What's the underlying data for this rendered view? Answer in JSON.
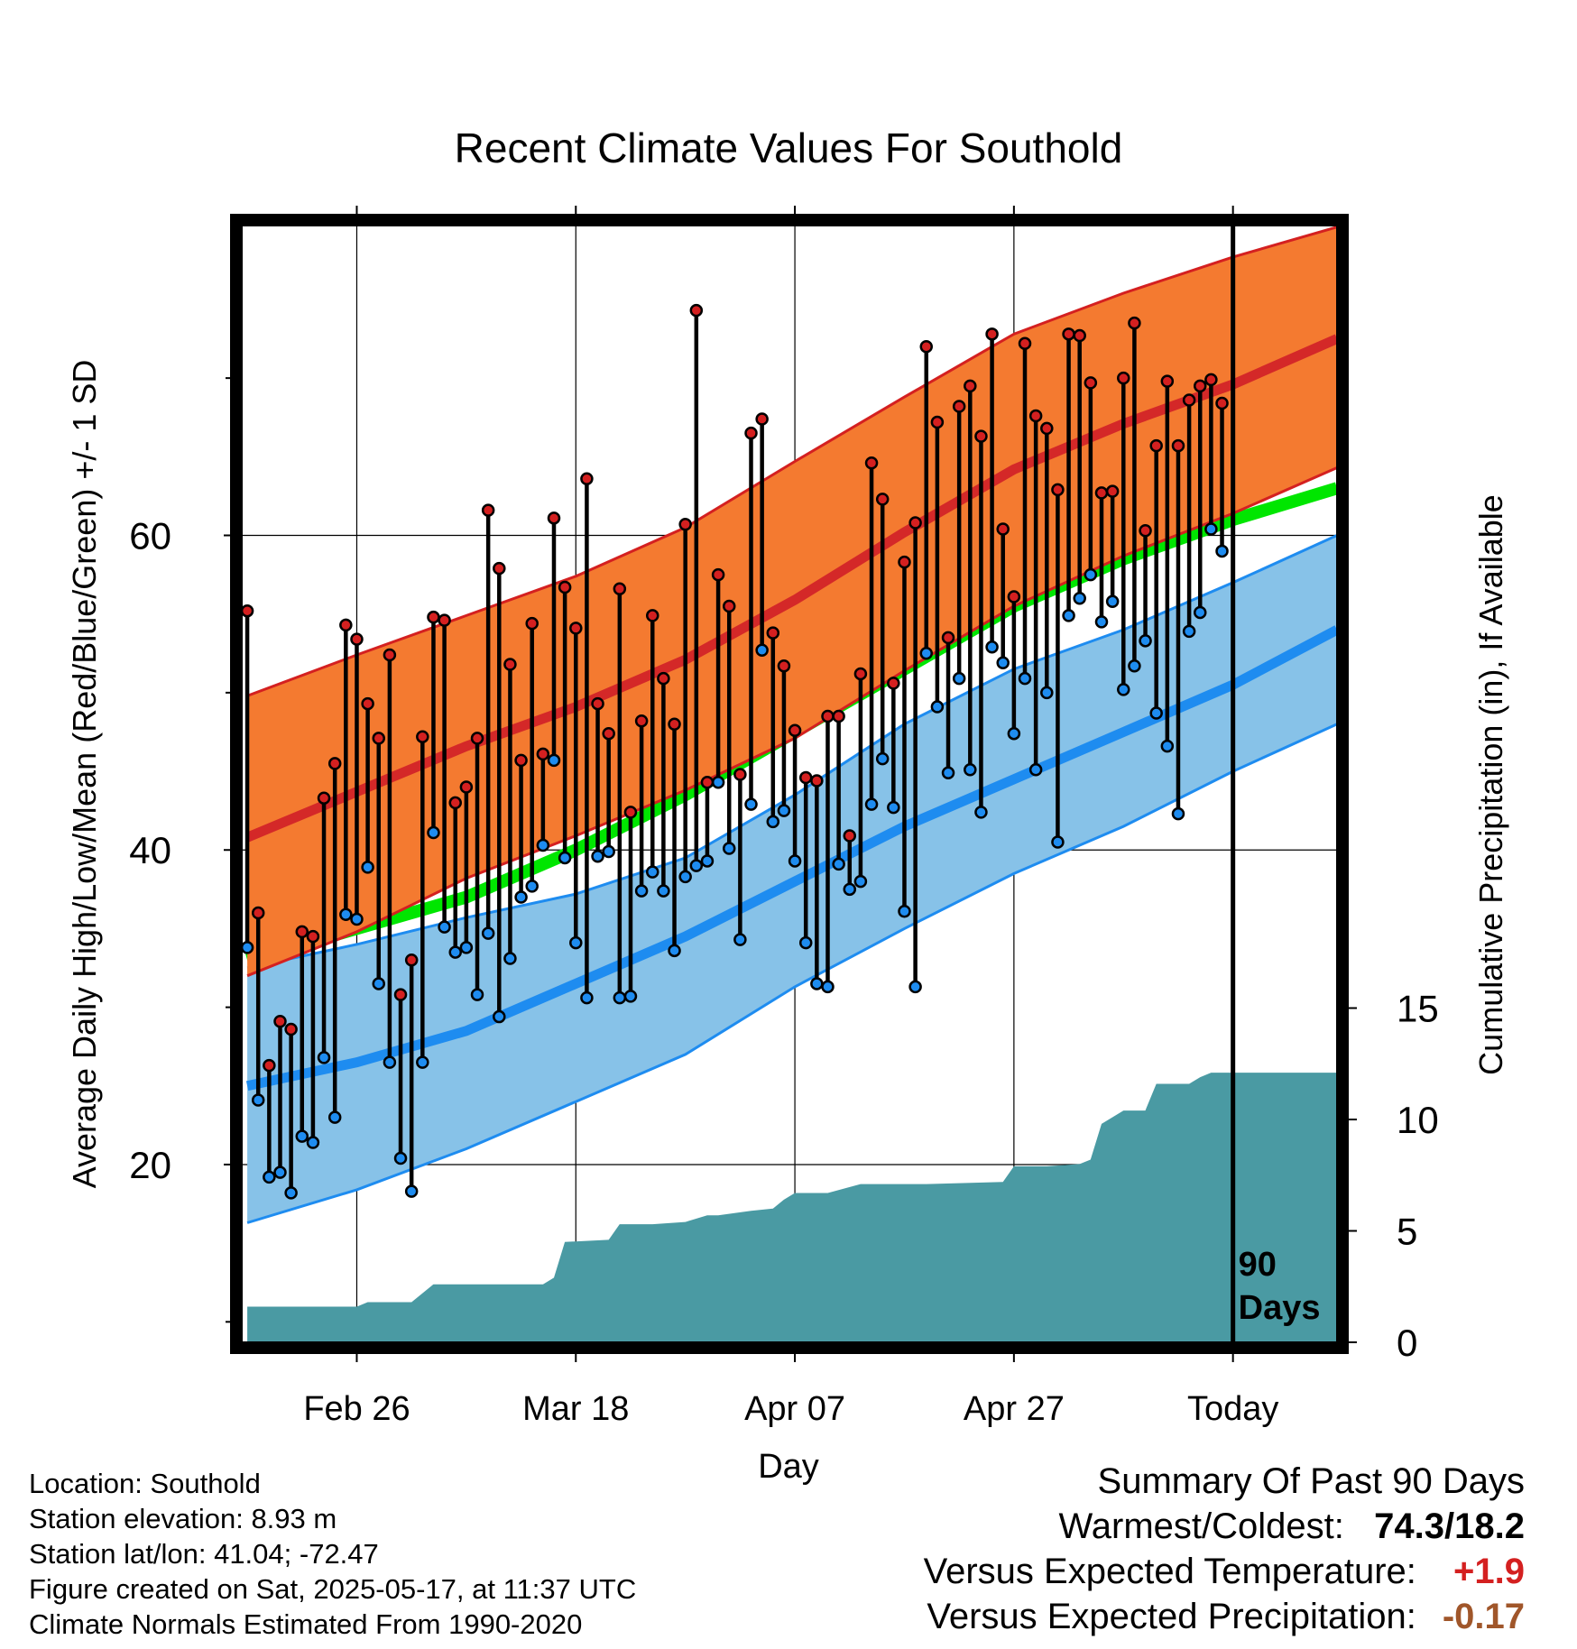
{
  "chart_data": {
    "type": "line",
    "title": "Recent Climate Values For Southold",
    "xlabel": "Day",
    "ylabel": "Average Daily High/Low/Mean (Red/Blue/Green) +/- 1 SD",
    "y2label": "Cumulative Precipitation (in), If Available",
    "x_tick_labels": [
      {
        "label": "Feb 26",
        "day": 10
      },
      {
        "label": "Mar 18",
        "day": 30
      },
      {
        "label": "Apr 07",
        "day": 50
      },
      {
        "label": "Apr 27",
        "day": 70
      },
      {
        "label": "Today",
        "day": 90
      }
    ],
    "y_ticks": [
      20,
      40,
      60
    ],
    "y_minor_ticks": [
      10,
      30,
      50,
      70
    ],
    "ylim": [
      8.7,
      79.7
    ],
    "y2_ticks": [
      0,
      5,
      10,
      15
    ],
    "y2lim": [
      0,
      15
    ],
    "xlim": [
      -0.5,
      99.5
    ],
    "today_day": 90,
    "period_label_line1": "90",
    "period_label_line2": "Days",
    "grid": true,
    "normal_high": {
      "day": [
        0,
        10,
        20,
        30,
        40,
        50,
        60,
        70,
        80,
        90,
        99.5
      ],
      "mean": [
        40.8,
        43.7,
        46.6,
        49.1,
        52.1,
        55.9,
        60.2,
        64.2,
        67.1,
        69.6,
        72.5
      ],
      "sd_upper": [
        49.8,
        52.4,
        54.9,
        57.4,
        60.5,
        64.7,
        68.8,
        72.8,
        75.4,
        77.7,
        79.6
      ],
      "sd_lower": [
        32.0,
        34.8,
        38.2,
        40.9,
        43.8,
        47.1,
        51.4,
        55.5,
        58.7,
        61.4,
        64.3
      ]
    },
    "normal_mean": {
      "day": [
        0,
        10,
        20,
        30,
        40,
        50,
        60,
        70,
        80,
        90,
        99.5
      ],
      "values": [
        33.0,
        35.0,
        37.0,
        40.0,
        43.5,
        47.5,
        51.5,
        55.5,
        58.5,
        61.0,
        63.0
      ]
    },
    "normal_low": {
      "day": [
        0,
        10,
        20,
        30,
        40,
        50,
        60,
        70,
        80,
        90,
        99.5
      ],
      "mean": [
        25.0,
        26.5,
        28.5,
        31.5,
        34.5,
        38.0,
        41.5,
        44.5,
        47.5,
        50.5,
        54.0
      ],
      "sd_upper": [
        32.5,
        34.0,
        35.7,
        37.2,
        39.5,
        43.5,
        48.0,
        51.5,
        54.0,
        57.0,
        60.0
      ],
      "sd_lower": [
        16.3,
        18.4,
        21.0,
        24.0,
        27.0,
        31.3,
        35.0,
        38.5,
        41.5,
        45.0,
        48.0
      ]
    },
    "series": [
      {
        "name": "High",
        "day": [
          0,
          1,
          2,
          3,
          4,
          5,
          6,
          7,
          8,
          9,
          10,
          11,
          12,
          13,
          14,
          15,
          16,
          17,
          18,
          19,
          20,
          21,
          22,
          23,
          24,
          25,
          26,
          27,
          28,
          29,
          30,
          31,
          32,
          33,
          34,
          35,
          36,
          37,
          38,
          39,
          40,
          41,
          42,
          43,
          44,
          45,
          46,
          47,
          48,
          49,
          50,
          51,
          52,
          53,
          54,
          55,
          56,
          57,
          58,
          59,
          60,
          61,
          62,
          63,
          64,
          65,
          66,
          67,
          68,
          69,
          70,
          71,
          72,
          73,
          74,
          75,
          76,
          77,
          78,
          79,
          80,
          81,
          82,
          83,
          84,
          85,
          86,
          87,
          88,
          89
        ],
        "values": [
          55.2,
          36.0,
          26.3,
          29.1,
          28.6,
          34.8,
          34.5,
          43.3,
          45.5,
          54.3,
          53.4,
          49.3,
          47.1,
          52.4,
          30.8,
          33.0,
          47.2,
          54.8,
          54.6,
          43.0,
          44.0,
          47.1,
          61.6,
          57.9,
          51.8,
          45.7,
          54.4,
          46.1,
          61.1,
          56.7,
          54.1,
          63.6,
          49.3,
          47.4,
          56.6,
          42.4,
          48.2,
          54.9,
          50.9,
          48.0,
          60.7,
          74.3,
          44.3,
          57.5,
          55.5,
          44.8,
          66.5,
          67.4,
          53.8,
          51.7,
          47.6,
          44.6,
          44.4,
          48.5,
          48.5,
          40.9,
          51.2,
          64.6,
          62.3,
          50.6,
          58.3,
          60.8,
          72.0,
          67.2,
          53.5,
          68.2,
          69.5,
          66.3,
          72.8,
          60.4,
          56.1,
          72.2,
          67.6,
          66.8,
          62.9,
          72.8,
          72.7,
          69.7,
          62.7,
          62.8,
          70.0,
          73.5,
          60.3,
          65.7,
          69.8,
          65.7,
          68.6,
          69.5,
          69.9,
          68.4
        ]
      },
      {
        "name": "Low",
        "day": [
          0,
          1,
          2,
          3,
          4,
          5,
          6,
          7,
          8,
          9,
          10,
          11,
          12,
          13,
          14,
          15,
          16,
          17,
          18,
          19,
          20,
          21,
          22,
          23,
          24,
          25,
          26,
          27,
          28,
          29,
          30,
          31,
          32,
          33,
          34,
          35,
          36,
          37,
          38,
          39,
          40,
          41,
          42,
          43,
          44,
          45,
          46,
          47,
          48,
          49,
          50,
          51,
          52,
          53,
          54,
          55,
          56,
          57,
          58,
          59,
          60,
          61,
          62,
          63,
          64,
          65,
          66,
          67,
          68,
          69,
          70,
          71,
          72,
          73,
          74,
          75,
          76,
          77,
          78,
          79,
          80,
          81,
          82,
          83,
          84,
          85,
          86,
          87,
          88,
          89
        ],
        "values": [
          33.8,
          24.1,
          19.2,
          19.5,
          18.2,
          21.8,
          21.4,
          26.8,
          23.0,
          35.9,
          35.6,
          38.9,
          31.5,
          26.5,
          20.4,
          18.3,
          26.5,
          41.1,
          35.1,
          33.5,
          33.8,
          30.8,
          34.7,
          29.4,
          33.1,
          37.0,
          37.7,
          40.3,
          45.7,
          39.5,
          34.1,
          30.6,
          39.6,
          39.9,
          30.6,
          30.7,
          37.4,
          38.6,
          37.4,
          33.6,
          38.3,
          39.0,
          39.3,
          44.3,
          40.1,
          34.3,
          42.9,
          52.7,
          41.8,
          42.5,
          39.3,
          34.1,
          31.5,
          31.3,
          39.1,
          37.5,
          38.0,
          42.9,
          45.8,
          42.7,
          36.1,
          31.3,
          52.5,
          49.1,
          44.9,
          50.9,
          45.1,
          42.4,
          52.9,
          51.9,
          47.4,
          50.9,
          45.1,
          50.0,
          40.5,
          54.9,
          56.0,
          57.5,
          54.5,
          55.8,
          50.2,
          51.7,
          53.3,
          48.7,
          46.6,
          42.3,
          53.9,
          55.1,
          60.4,
          59.0
        ]
      }
    ],
    "precip": {
      "day": [
        0,
        10,
        11,
        15,
        17,
        27,
        28,
        29,
        33,
        34,
        37,
        40,
        42,
        43,
        46,
        48,
        49,
        50,
        53,
        56,
        60,
        62,
        69,
        70,
        73,
        76,
        77,
        78,
        80,
        82,
        83,
        86,
        87,
        88,
        99.5
      ],
      "values": [
        1.6,
        1.6,
        1.8,
        1.8,
        2.6,
        2.6,
        2.9,
        4.5,
        4.6,
        5.3,
        5.3,
        5.4,
        5.7,
        5.7,
        5.9,
        6.0,
        6.4,
        6.7,
        6.7,
        7.1,
        7.1,
        7.1,
        7.2,
        7.9,
        7.9,
        8.0,
        8.2,
        9.8,
        10.4,
        10.4,
        11.6,
        11.6,
        11.9,
        12.1,
        12.1
      ]
    },
    "colors": {
      "high_band": "#f47a30",
      "high_edge": "#d42020",
      "high_mean": "#d42828",
      "low_band": "#87c2e8",
      "low_edge": "#1e8cf0",
      "low_mean": "#1e8cf0",
      "mean_line": "#00e600",
      "precip": "#4a9aa3",
      "high_dot": "#d42020",
      "low_dot": "#1e8cf0"
    }
  },
  "info": {
    "location": "Location: Southold",
    "elevation": "Station elevation: 8.93 m",
    "latlon": "Station lat/lon: 41.04; -72.47",
    "created": "Figure created on Sat, 2025-05-17, at 11:37 UTC",
    "normals": "Climate Normals Estimated From 1990-2020"
  },
  "summary": {
    "title": "Summary Of Past 90 Days",
    "warm_label": "Warmest/Coldest:",
    "warm_value": "74.3/18.2",
    "temp_label": "Versus Expected Temperature:",
    "temp_value": "+1.9",
    "precip_label": "Versus Expected Precipitation:",
    "precip_value": "-0.17"
  }
}
